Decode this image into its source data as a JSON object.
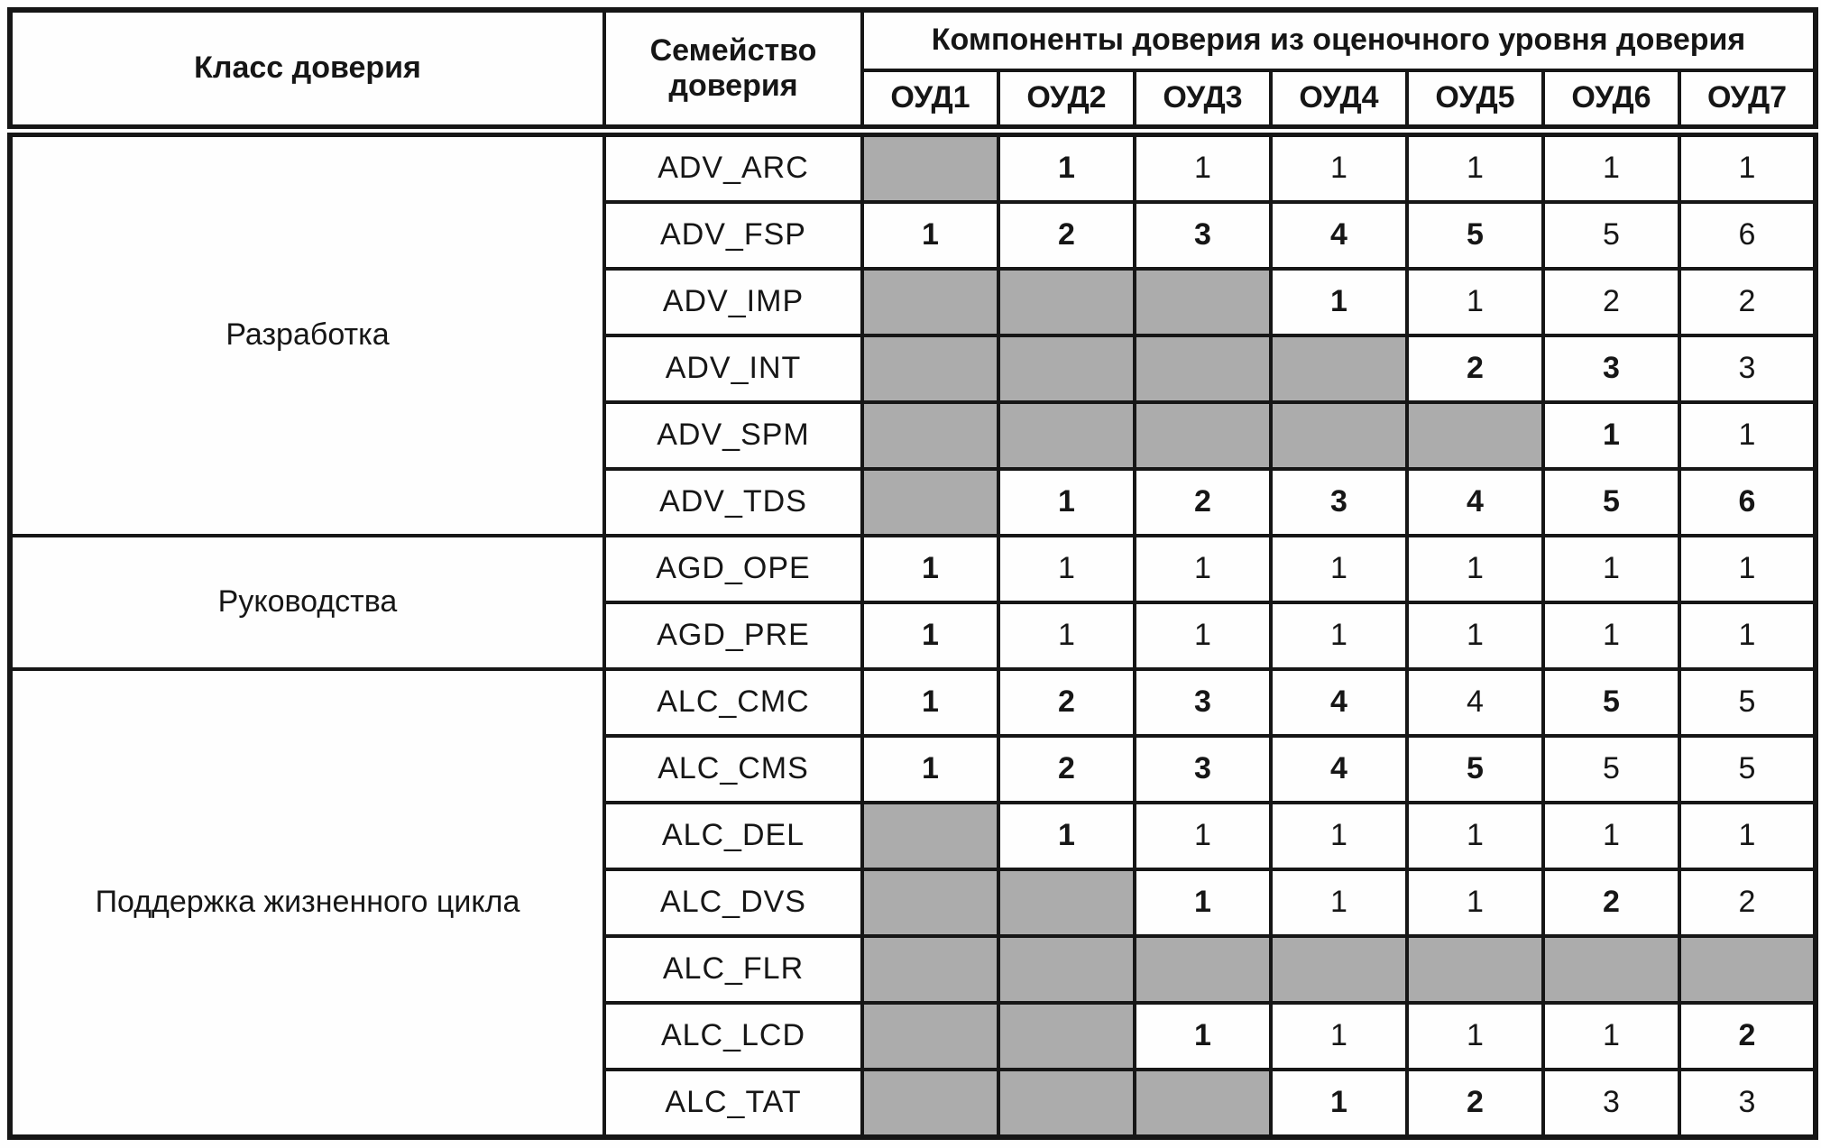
{
  "table": {
    "header": {
      "class_col": "Класс доверия",
      "family_col": "Семейство доверия",
      "components_span": "Компоненты доверия из оценочного уровня доверия",
      "eal_columns": [
        "ОУД1",
        "ОУД2",
        "ОУД3",
        "ОУД4",
        "ОУД5",
        "ОУД6",
        "ОУД7"
      ]
    },
    "groups": [
      {
        "class_label": "Разработка",
        "families": [
          {
            "name": "ADV_ARC",
            "cells": [
              {
                "shaded": true
              },
              {
                "v": "1",
                "bold": true
              },
              {
                "v": "1"
              },
              {
                "v": "1"
              },
              {
                "v": "1"
              },
              {
                "v": "1"
              },
              {
                "v": "1"
              }
            ]
          },
          {
            "name": "ADV_FSP",
            "cells": [
              {
                "v": "1",
                "bold": true
              },
              {
                "v": "2",
                "bold": true
              },
              {
                "v": "3",
                "bold": true
              },
              {
                "v": "4",
                "bold": true
              },
              {
                "v": "5",
                "bold": true
              },
              {
                "v": "5"
              },
              {
                "v": "6"
              }
            ]
          },
          {
            "name": "ADV_IMP",
            "cells": [
              {
                "shaded": true
              },
              {
                "shaded": true
              },
              {
                "shaded": true
              },
              {
                "v": "1",
                "bold": true
              },
              {
                "v": "1"
              },
              {
                "v": "2"
              },
              {
                "v": "2"
              }
            ]
          },
          {
            "name": "ADV_INT",
            "cells": [
              {
                "shaded": true
              },
              {
                "shaded": true
              },
              {
                "shaded": true
              },
              {
                "shaded": true
              },
              {
                "v": "2",
                "bold": true
              },
              {
                "v": "3",
                "bold": true
              },
              {
                "v": "3"
              }
            ]
          },
          {
            "name": "ADV_SPM",
            "cells": [
              {
                "shaded": true
              },
              {
                "shaded": true
              },
              {
                "shaded": true
              },
              {
                "shaded": true
              },
              {
                "shaded": true
              },
              {
                "v": "1",
                "bold": true
              },
              {
                "v": "1"
              }
            ]
          },
          {
            "name": "ADV_TDS",
            "cells": [
              {
                "shaded": true
              },
              {
                "v": "1",
                "bold": true
              },
              {
                "v": "2",
                "bold": true
              },
              {
                "v": "3",
                "bold": true
              },
              {
                "v": "4",
                "bold": true
              },
              {
                "v": "5",
                "bold": true
              },
              {
                "v": "6",
                "bold": true
              }
            ]
          }
        ]
      },
      {
        "class_label": "Руководства",
        "families": [
          {
            "name": "AGD_OPE",
            "cells": [
              {
                "v": "1",
                "bold": true
              },
              {
                "v": "1"
              },
              {
                "v": "1"
              },
              {
                "v": "1"
              },
              {
                "v": "1"
              },
              {
                "v": "1"
              },
              {
                "v": "1"
              }
            ]
          },
          {
            "name": "AGD_PRE",
            "cells": [
              {
                "v": "1",
                "bold": true
              },
              {
                "v": "1"
              },
              {
                "v": "1"
              },
              {
                "v": "1"
              },
              {
                "v": "1"
              },
              {
                "v": "1"
              },
              {
                "v": "1"
              }
            ]
          }
        ]
      },
      {
        "class_label": "Поддержка жизненного цикла",
        "families": [
          {
            "name": "ALC_CMC",
            "cells": [
              {
                "v": "1",
                "bold": true
              },
              {
                "v": "2",
                "bold": true
              },
              {
                "v": "3",
                "bold": true
              },
              {
                "v": "4",
                "bold": true
              },
              {
                "v": "4"
              },
              {
                "v": "5",
                "bold": true
              },
              {
                "v": "5"
              }
            ]
          },
          {
            "name": "ALC_CMS",
            "cells": [
              {
                "v": "1",
                "bold": true
              },
              {
                "v": "2",
                "bold": true
              },
              {
                "v": "3",
                "bold": true
              },
              {
                "v": "4",
                "bold": true
              },
              {
                "v": "5",
                "bold": true
              },
              {
                "v": "5"
              },
              {
                "v": "5"
              }
            ]
          },
          {
            "name": "ALC_DEL",
            "cells": [
              {
                "shaded": true
              },
              {
                "v": "1",
                "bold": true
              },
              {
                "v": "1"
              },
              {
                "v": "1"
              },
              {
                "v": "1"
              },
              {
                "v": "1"
              },
              {
                "v": "1"
              }
            ]
          },
          {
            "name": "ALC_DVS",
            "cells": [
              {
                "shaded": true
              },
              {
                "shaded": true
              },
              {
                "v": "1",
                "bold": true
              },
              {
                "v": "1"
              },
              {
                "v": "1"
              },
              {
                "v": "2",
                "bold": true
              },
              {
                "v": "2"
              }
            ]
          },
          {
            "name": "ALC_FLR",
            "cells": [
              {
                "shaded": true
              },
              {
                "shaded": true
              },
              {
                "shaded": true
              },
              {
                "shaded": true
              },
              {
                "shaded": true
              },
              {
                "shaded": true
              },
              {
                "shaded": true
              }
            ]
          },
          {
            "name": "ALC_LCD",
            "cells": [
              {
                "shaded": true
              },
              {
                "shaded": true
              },
              {
                "v": "1",
                "bold": true
              },
              {
                "v": "1"
              },
              {
                "v": "1"
              },
              {
                "v": "1"
              },
              {
                "v": "2",
                "bold": true
              }
            ]
          },
          {
            "name": "ALC_TAT",
            "cells": [
              {
                "shaded": true
              },
              {
                "shaded": true
              },
              {
                "shaded": true
              },
              {
                "v": "1",
                "bold": true
              },
              {
                "v": "2",
                "bold": true
              },
              {
                "v": "3"
              },
              {
                "v": "3"
              }
            ]
          }
        ]
      }
    ]
  },
  "colors": {
    "shaded_cell": "#acacac",
    "border": "#161616",
    "background": "#fefefe"
  }
}
